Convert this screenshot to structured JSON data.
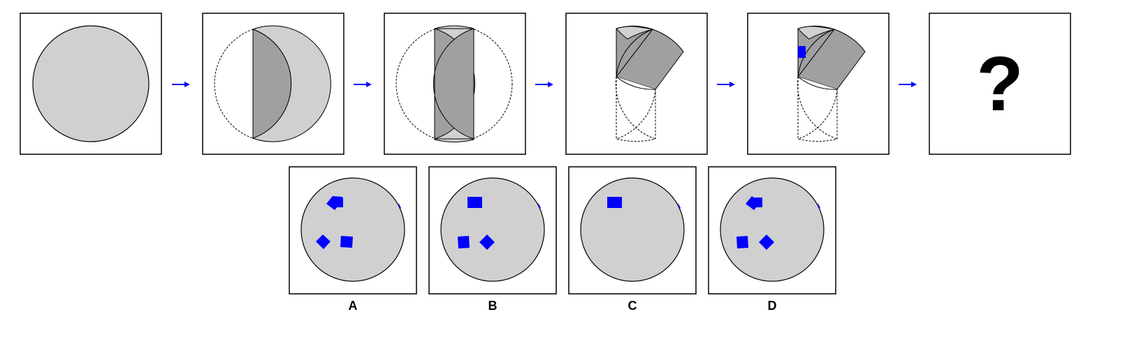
{
  "puzzle": {
    "question_mark": "?",
    "options": [
      {
        "label": "A"
      },
      {
        "label": "B"
      },
      {
        "label": "C"
      },
      {
        "label": "D"
      }
    ]
  },
  "colors": {
    "light_fill": "#d0d0d0",
    "dark_fill": "#a0a0a0",
    "hole": "#0000ff",
    "arrow": "#0000ff",
    "stroke": "#000000"
  },
  "icons": {
    "arrow": "right-arrow-icon",
    "hole": "square-hole-icon"
  }
}
